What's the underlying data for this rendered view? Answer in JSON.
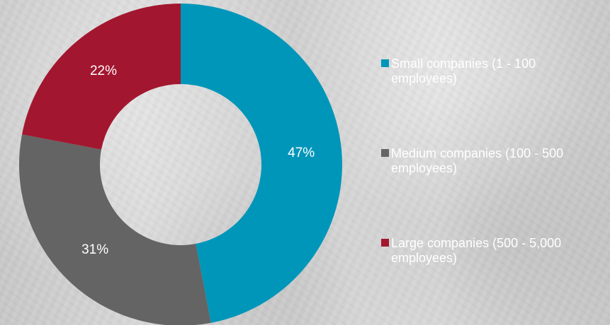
{
  "chart_data": {
    "type": "pie",
    "categories": [
      "Small companies (1 - 100 employees)",
      "Medium companies (100 - 500 employees)",
      "Large companies (500 - 5,000 employees)"
    ],
    "values": [
      47,
      31,
      22
    ],
    "data_labels": [
      "47%",
      "31%",
      "22%"
    ],
    "colors": [
      "#0096b9",
      "#646464",
      "#a3162f"
    ],
    "donut": true,
    "legend_position": "right"
  },
  "legend": {
    "items": [
      {
        "line1": "Small companies (1 - 100",
        "line2": "employees)",
        "color": "#0096b9"
      },
      {
        "line1": "Medium companies (100 - 500",
        "line2": "employees)",
        "color": "#646464"
      },
      {
        "line1": "Large companies (500 - 5,000",
        "line2": "employees)",
        "color": "#a3162f"
      }
    ]
  }
}
